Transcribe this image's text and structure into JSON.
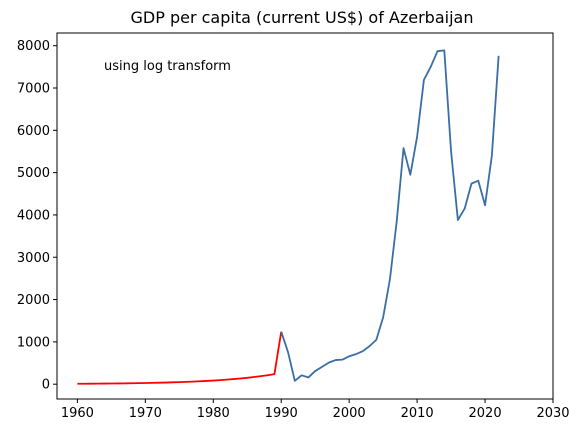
{
  "chart_data": {
    "type": "line",
    "title": "GDP per capita (current US$) of Azerbaijan",
    "annotation": "using log transform",
    "xlabel": "",
    "ylabel": "",
    "xlim": [
      1957,
      2030
    ],
    "ylim": [
      -350,
      8300
    ],
    "x_ticks": [
      1960,
      1970,
      1980,
      1990,
      2000,
      2010,
      2020,
      2030
    ],
    "y_ticks": [
      0,
      1000,
      2000,
      3000,
      4000,
      5000,
      6000,
      7000,
      8000
    ],
    "grid": false,
    "series": [
      {
        "color": "#ff0000",
        "x": [
          1960,
          1961,
          1962,
          1963,
          1964,
          1965,
          1966,
          1967,
          1968,
          1969,
          1970,
          1971,
          1972,
          1973,
          1974,
          1975,
          1976,
          1977,
          1978,
          1979,
          1980,
          1981,
          1982,
          1983,
          1984,
          1985,
          1986,
          1987,
          1988,
          1989,
          1990
        ],
        "y": [
          10,
          11,
          12,
          13,
          15,
          16,
          18,
          20,
          22,
          25,
          28,
          31,
          35,
          39,
          44,
          49,
          55,
          61,
          69,
          77,
          86,
          96,
          108,
          121,
          135,
          151,
          169,
          190,
          212,
          237,
          1240
        ]
      },
      {
        "color": "#3a6ea5",
        "x": [
          1990,
          1991,
          1992,
          1993,
          1994,
          1995,
          1996,
          1997,
          1998,
          1999,
          2000,
          2001,
          2002,
          2003,
          2004,
          2005,
          2006,
          2007,
          2008,
          2009,
          2010,
          2011,
          2012,
          2013,
          2014,
          2015,
          2016,
          2017,
          2018,
          2019,
          2020,
          2021,
          2022
        ],
        "y": [
          1240,
          760,
          80,
          210,
          160,
          310,
          410,
          510,
          570,
          580,
          660,
          710,
          780,
          900,
          1050,
          1580,
          2480,
          3850,
          5580,
          4950,
          5850,
          7190,
          7500,
          7870,
          7890,
          5500,
          3880,
          4150,
          4740,
          4810,
          4230,
          5400,
          7760
        ]
      }
    ]
  }
}
